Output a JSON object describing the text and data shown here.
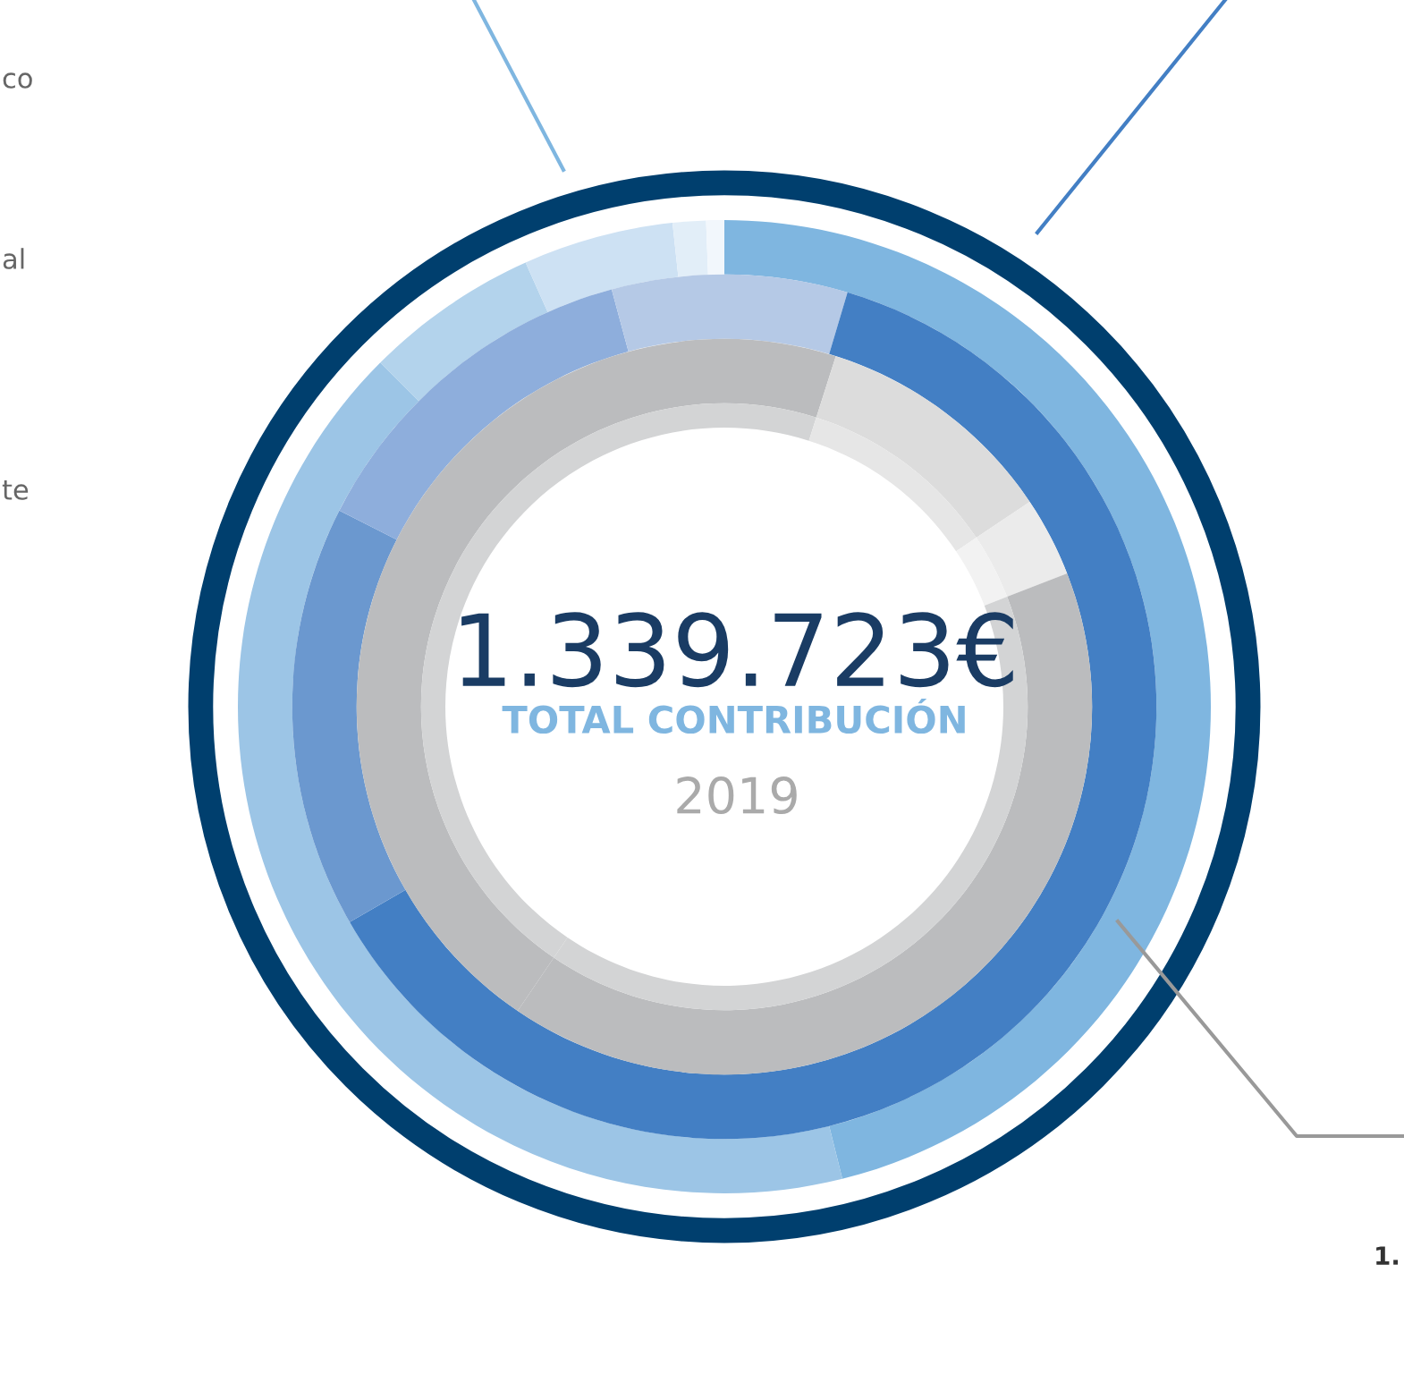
{
  "chart_data": {
    "type": "donut",
    "title": "1.339.723€",
    "subtitle": "TOTAL CONTRIBUCIÓN",
    "annotations": [
      "2019",
      "co",
      "al",
      "te",
      "1."
    ],
    "categories": [
      null,
      null,
      null,
      null,
      null,
      null
    ],
    "series": [
      {
        "values": [
          46.1,
          41.4,
          5.8,
          5.0,
          1.1,
          0.6
        ],
        "colors": [
          "#7fb6e0",
          "#9cc5e6",
          "#b3d3ec",
          "#cde1f3",
          "#e2eef8",
          "#f2f7fc"
        ]
      },
      {
        "values": [
          4.6,
          62.1,
          15.8,
          13.3,
          4.2,
          null
        ],
        "colors": [
          "#b5c9e6",
          "#437fc4",
          "#6b98cf",
          "#8eaedc",
          "#b5c9e6",
          null
        ]
      },
      {
        "values": [
          4.9,
          10.7,
          3.5,
          40.4,
          40.5,
          null
        ],
        "colors": [
          "#bbbcbe",
          "#dcdcdc",
          "#ebebeb",
          "#bbbcbe",
          "#bbbcbe",
          null
        ]
      },
      {
        "values": [
          4.9,
          10.7,
          3.5,
          40.4,
          40.5,
          null
        ],
        "colors": [
          "#d3d4d5",
          "#e6e6e6",
          "#f2f2f2",
          "#d3d4d5",
          "#d3d4d5",
          null
        ]
      }
    ]
  }
}
